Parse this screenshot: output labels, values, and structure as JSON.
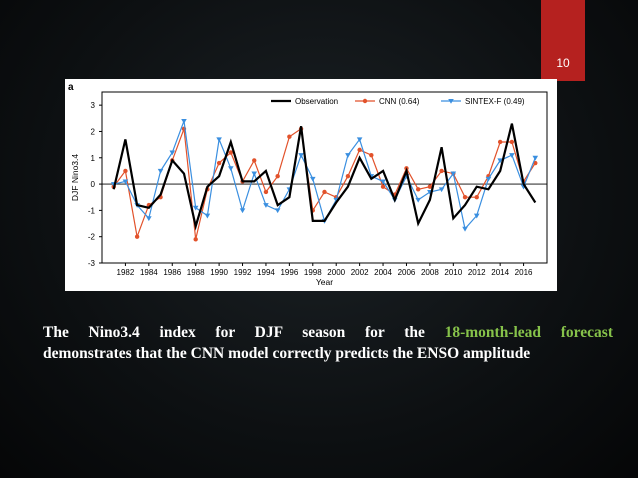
{
  "slide": {
    "page_number": "10",
    "accent_color": "#b5211f",
    "highlight_color": "#86c24a"
  },
  "caption": {
    "line1_prefix": "The Nino3.4 index for DJF season for the ",
    "line1_highlight": "18-month-lead forecast",
    "line2": "demonstrates that the CNN model correctly predicts the ENSO amplitude"
  },
  "chart_data": {
    "type": "line",
    "panel_label": "a",
    "xlabel": "Year",
    "ylabel": "DJF Nino3.4",
    "xlim": [
      1980,
      2018
    ],
    "ylim": [
      -3,
      3.5
    ],
    "xticks": [
      1982,
      1984,
      1986,
      1988,
      1990,
      1992,
      1994,
      1996,
      1998,
      2000,
      2002,
      2004,
      2006,
      2008,
      2010,
      2012,
      2014,
      2016
    ],
    "yticks": [
      -3,
      -2,
      -1,
      0,
      1,
      2,
      3
    ],
    "legend_position": "top",
    "x": [
      1981,
      1982,
      1983,
      1984,
      1985,
      1986,
      1987,
      1988,
      1989,
      1990,
      1991,
      1992,
      1993,
      1994,
      1995,
      1996,
      1997,
      1998,
      1999,
      2000,
      2001,
      2002,
      2003,
      2004,
      2005,
      2006,
      2007,
      2008,
      2009,
      2010,
      2011,
      2012,
      2013,
      2014,
      2015,
      2016,
      2017
    ],
    "series": [
      {
        "name": "Observation",
        "color": "#000000",
        "marker": "none",
        "values": [
          -0.2,
          1.7,
          -0.8,
          -0.9,
          -0.4,
          0.9,
          0.4,
          -1.6,
          -0.1,
          0.3,
          1.6,
          0.1,
          0.1,
          0.5,
          -0.8,
          -0.5,
          2.2,
          -1.4,
          -1.4,
          -0.7,
          -0.1,
          1.0,
          0.2,
          0.5,
          -0.6,
          0.5,
          -1.5,
          -0.6,
          1.4,
          -1.3,
          -0.8,
          -0.1,
          -0.2,
          0.5,
          2.3,
          0.0,
          -0.7
        ]
      },
      {
        "name": "CNN (0.64)",
        "color": "#e2522b",
        "marker": "circle",
        "values": [
          -0.1,
          0.5,
          -2.0,
          -0.8,
          -0.5,
          0.9,
          2.1,
          -2.1,
          -0.2,
          0.8,
          1.2,
          0.1,
          0.9,
          -0.3,
          0.3,
          1.8,
          2.1,
          -1.0,
          -0.3,
          -0.5,
          0.3,
          1.3,
          1.1,
          -0.1,
          -0.4,
          0.6,
          -0.2,
          -0.1,
          0.5,
          0.4,
          -0.5,
          -0.5,
          0.3,
          1.6,
          1.6,
          0.1,
          0.8
        ]
      },
      {
        "name": "SINTEX-F (0.49)",
        "color": "#3a8fe0",
        "marker": "triangle-down",
        "values": [
          0.0,
          0.1,
          -0.8,
          -1.3,
          0.5,
          1.2,
          2.4,
          -0.9,
          -1.2,
          1.7,
          0.6,
          -1.0,
          0.4,
          -0.8,
          -1.0,
          -0.2,
          1.1,
          0.2,
          -1.4,
          -0.6,
          1.1,
          1.7,
          0.3,
          0.1,
          -0.6,
          0.3,
          -0.6,
          -0.3,
          -0.2,
          0.4,
          -1.7,
          -1.2,
          0.2,
          0.9,
          1.1,
          -0.1,
          1.0
        ]
      }
    ]
  }
}
